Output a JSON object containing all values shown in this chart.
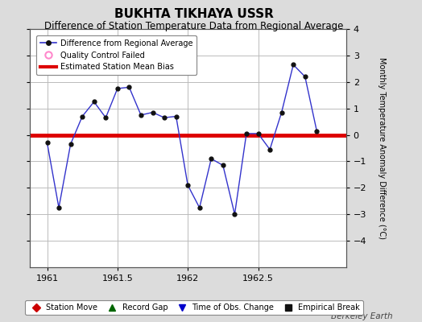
{
  "title": "BUKHTA TIKHAYA USSR",
  "subtitle": "Difference of Station Temperature Data from Regional Average",
  "ylabel_right": "Monthly Temperature Anomaly Difference (°C)",
  "bias_value": 0.0,
  "xlim": [
    1960.875,
    1963.125
  ],
  "ylim": [
    -5,
    4
  ],
  "yticks": [
    -4,
    -3,
    -2,
    -1,
    0,
    1,
    2,
    3,
    4
  ],
  "xticks": [
    1961,
    1961.5,
    1962,
    1962.5
  ],
  "xticklabels": [
    "1961",
    "1961.5",
    "1962",
    "1962.5"
  ],
  "background_color": "#dcdcdc",
  "plot_bg_color": "#ffffff",
  "grid_color": "#bbbbbb",
  "line_color": "#3333cc",
  "bias_color": "#dd0000",
  "marker_color": "#111111",
  "x_data": [
    1961.0,
    1961.0833,
    1961.1667,
    1961.25,
    1961.3333,
    1961.4167,
    1961.5,
    1961.5833,
    1961.6667,
    1961.75,
    1961.8333,
    1961.9167,
    1962.0,
    1962.0833,
    1962.1667,
    1962.25,
    1962.3333,
    1962.4167,
    1962.5,
    1962.5833,
    1962.6667,
    1962.75,
    1962.8333,
    1962.9167
  ],
  "y_data": [
    -0.3,
    -2.75,
    -0.35,
    0.7,
    1.25,
    0.65,
    1.75,
    1.8,
    0.75,
    0.85,
    0.65,
    0.7,
    -1.9,
    -2.75,
    -0.9,
    -1.15,
    -3.0,
    0.05,
    0.05,
    -0.55,
    0.85,
    2.65,
    2.2,
    0.15
  ],
  "legend_line_label": "Difference from Regional Average",
  "legend_circle_label": "Quality Control Failed",
  "legend_bias_label": "Estimated Station Mean Bias",
  "legend2_entries": [
    {
      "label": "Station Move",
      "color": "#cc0000",
      "marker": "D"
    },
    {
      "label": "Record Gap",
      "color": "#006600",
      "marker": "^"
    },
    {
      "label": "Time of Obs. Change",
      "color": "#0000cc",
      "marker": "v"
    },
    {
      "label": "Empirical Break",
      "color": "#111111",
      "marker": "s"
    }
  ],
  "watermark": "Berkeley Earth",
  "title_fontsize": 11,
  "subtitle_fontsize": 8.5,
  "axis_fontsize": 7,
  "tick_fontsize": 8
}
